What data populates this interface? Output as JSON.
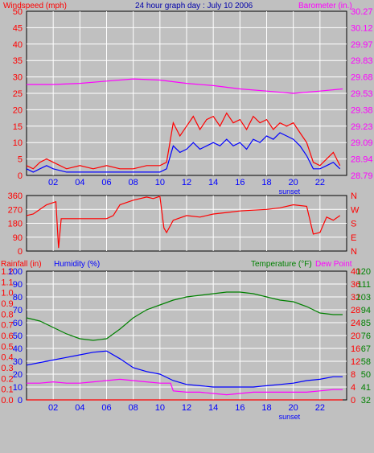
{
  "header": {
    "left_label": "Windspeed (mph)",
    "title": "24 hour graph day : July 10 2006",
    "right_label": "Barometer (in.)"
  },
  "x_axis": {
    "ticks": [
      "02",
      "04",
      "06",
      "08",
      "10",
      "12",
      "14",
      "16",
      "18",
      "20",
      "22"
    ],
    "tick_hours": [
      2,
      4,
      6,
      8,
      10,
      12,
      14,
      16,
      18,
      20,
      22
    ],
    "sunset_label": "sunset",
    "sunset_hour": 20
  },
  "colors": {
    "plot_bg": "#c0c0c0",
    "grid": "#ffffff",
    "red": "#ff0000",
    "blue": "#0000ff",
    "magenta": "#ff00ff",
    "green": "#008000"
  },
  "chart_data": [
    {
      "type": "line",
      "panel": "wind",
      "y_left": {
        "label": "Windspeed (mph)",
        "ticks": [
          "0",
          "2.5",
          "5",
          "7.5",
          "10",
          "12.5",
          "15",
          "17.5",
          "20",
          "22.5",
          "25",
          "27.5",
          "30",
          "32.5",
          "35",
          "37.5",
          "40",
          "42.5",
          "45",
          "47.5",
          "50"
        ],
        "range": [
          0,
          50
        ]
      },
      "y_right": {
        "label": "Barometer (in.)",
        "ticks": [
          "28.79",
          "28.94",
          "29.09",
          "29.23",
          "29.38",
          "29.53",
          "29.68",
          "29.83",
          "29.97",
          "30.12",
          "30.27"
        ],
        "range": [
          28.79,
          30.27
        ]
      },
      "series": [
        {
          "color": "red",
          "axis": "left",
          "x": [
            0,
            0.5,
            1,
            1.5,
            2,
            3,
            4,
            5,
            6,
            7,
            8,
            9,
            10,
            10.5,
            11,
            11.5,
            12,
            12.5,
            13,
            13.5,
            14,
            14.5,
            15,
            15.5,
            16,
            16.5,
            17,
            17.5,
            18,
            18.5,
            19,
            19.5,
            20,
            20.5,
            21,
            21.5,
            22,
            22.5,
            23,
            23.5
          ],
          "values": [
            3,
            2,
            4,
            5,
            4,
            2,
            3,
            2,
            3,
            2,
            2,
            3,
            3,
            4,
            16,
            12,
            15,
            18,
            14,
            17,
            18,
            15,
            19,
            16,
            17,
            14,
            18,
            16,
            17,
            14,
            16,
            15,
            16,
            13,
            10,
            4,
            3,
            5,
            7,
            3
          ]
        },
        {
          "color": "blue",
          "axis": "left",
          "x": [
            0,
            0.5,
            1,
            1.5,
            2,
            3,
            4,
            5,
            6,
            7,
            8,
            9,
            10,
            10.5,
            11,
            11.5,
            12,
            12.5,
            13,
            13.5,
            14,
            14.5,
            15,
            15.5,
            16,
            16.5,
            17,
            17.5,
            18,
            18.5,
            19,
            19.5,
            20,
            20.5,
            21,
            21.5,
            22,
            22.5,
            23,
            23.5
          ],
          "values": [
            2,
            1,
            2,
            3,
            2,
            1,
            1,
            1,
            1,
            1,
            1,
            1,
            1,
            2,
            9,
            7,
            8,
            10,
            8,
            9,
            10,
            9,
            11,
            9,
            10,
            8,
            11,
            10,
            12,
            11,
            13,
            12,
            11,
            9,
            6,
            2,
            2,
            3,
            4,
            2
          ]
        },
        {
          "color": "magenta",
          "axis": "right",
          "x": [
            0,
            2,
            4,
            6,
            8,
            10,
            12,
            14,
            16,
            18,
            20,
            22,
            23.7
          ],
          "values": [
            29.61,
            29.61,
            29.62,
            29.64,
            29.66,
            29.65,
            29.62,
            29.6,
            29.57,
            29.55,
            29.53,
            29.55,
            29.57
          ]
        }
      ]
    },
    {
      "type": "line",
      "panel": "direction",
      "y_left": {
        "ticks": [
          "0",
          "90",
          "180",
          "270",
          "360"
        ],
        "range": [
          0,
          360
        ]
      },
      "y_right": {
        "ticks": [
          "N",
          "E",
          "S",
          "W",
          "N"
        ]
      },
      "series": [
        {
          "color": "red",
          "axis": "left",
          "x": [
            0,
            0.5,
            1,
            1.5,
            2.2,
            2.4,
            2.6,
            3,
            4,
            5,
            6,
            6.5,
            7,
            8,
            9,
            9.5,
            10,
            10.3,
            10.5,
            11,
            12,
            13,
            14,
            15,
            16,
            17,
            18,
            19,
            20,
            21,
            21.5,
            22,
            22.5,
            23,
            23.5
          ],
          "values": [
            230,
            240,
            270,
            300,
            320,
            20,
            210,
            210,
            210,
            210,
            210,
            230,
            300,
            330,
            350,
            340,
            355,
            150,
            120,
            200,
            230,
            220,
            240,
            250,
            260,
            265,
            270,
            280,
            300,
            290,
            110,
            120,
            220,
            200,
            230
          ]
        }
      ]
    },
    {
      "type": "line",
      "panel": "temperature",
      "y_left_outer": {
        "label": "Rainfall (in)",
        "ticks": [
          "0.0",
          "0.1",
          "0.2",
          "0.3",
          "0.4",
          "0.5",
          "0.6",
          "0.7",
          "0.8",
          "0.9",
          "1.0",
          "1.1",
          "1.2"
        ],
        "range": [
          0,
          1.2
        ]
      },
      "y_left_inner": {
        "label": "Humidity (%)",
        "ticks": [
          "0",
          "10",
          "20",
          "30",
          "40",
          "50",
          "60",
          "70",
          "80",
          "90",
          "100"
        ],
        "range": [
          0,
          100
        ]
      },
      "y_right_inner": {
        "label": "Temperature (°F)",
        "ticks": [
          "0",
          "4",
          "8",
          "12",
          "16",
          "20",
          "24",
          "28",
          "32",
          "36",
          "40"
        ],
        "range": [
          0,
          40
        ]
      },
      "y_right_outer": {
        "label": "Dew Point",
        "ticks": [
          "32",
          "41",
          "50",
          "58",
          "67",
          "76",
          "85",
          "94",
          "103",
          "111",
          "120"
        ],
        "range": [
          32,
          120
        ]
      },
      "series": [
        {
          "color": "green",
          "axis": "right_inner",
          "x": [
            0,
            1,
            2,
            3,
            4,
            5,
            6,
            7,
            8,
            9,
            10,
            11,
            12,
            13,
            14,
            15,
            16,
            17,
            18,
            19,
            20,
            21,
            22,
            23,
            23.7
          ],
          "values": [
            25.5,
            24.5,
            22.5,
            20.5,
            19,
            18.5,
            19,
            22,
            25.5,
            28,
            29.5,
            31,
            32,
            32.5,
            33,
            33.5,
            33.5,
            33,
            32,
            31,
            30.5,
            29,
            27,
            26.5,
            26.5
          ]
        },
        {
          "color": "blue",
          "axis": "left_inner",
          "x": [
            0,
            1,
            2,
            3,
            4,
            5,
            6,
            7,
            8,
            9,
            10,
            11,
            12,
            13,
            14,
            15,
            16,
            17,
            18,
            19,
            20,
            21,
            22,
            23,
            23.7
          ],
          "values": [
            27,
            29,
            31,
            33,
            35,
            37,
            38,
            32,
            25,
            22,
            20,
            15,
            12,
            11,
            10,
            10,
            10,
            10,
            11,
            12,
            13,
            15,
            16,
            18,
            18
          ]
        },
        {
          "color": "magenta",
          "axis": "left_inner",
          "x": [
            0,
            1,
            2,
            3,
            4,
            5,
            6,
            7,
            8,
            9,
            10,
            10.8,
            11,
            12,
            13,
            14,
            15,
            16,
            17,
            18,
            19,
            20,
            21,
            22,
            23,
            23.7
          ],
          "values": [
            13,
            13,
            14,
            13,
            13,
            14,
            15,
            16,
            15,
            14,
            13,
            13,
            7,
            6,
            6,
            5,
            4,
            5,
            6,
            6,
            6,
            6,
            6,
            7,
            8,
            8
          ]
        },
        {
          "color": "red",
          "axis": "left_outer",
          "x": [
            0,
            23.7
          ],
          "values": [
            0,
            0
          ]
        }
      ]
    }
  ]
}
